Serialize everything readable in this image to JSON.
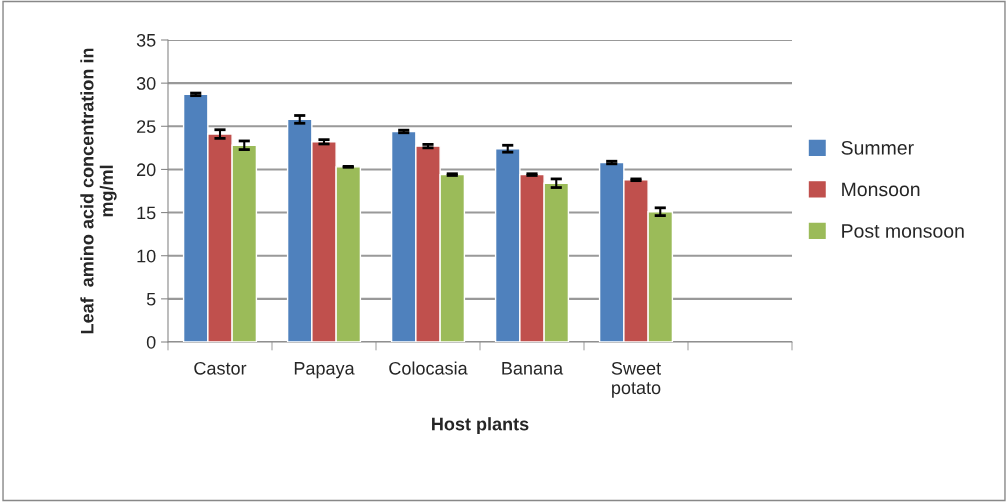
{
  "chart_data": {
    "type": "bar",
    "xlabel": "Host plants",
    "ylabel": "Leaf  amino acid concentration in\nmg/ml",
    "categories": [
      "Castor",
      "Papaya",
      "Colocasia",
      "Banana",
      "Sweet\npotato",
      null
    ],
    "series": [
      {
        "name": "Summer",
        "color": "#4f81bd",
        "values": [
          28.7,
          25.8,
          24.4,
          22.4,
          20.8,
          null
        ],
        "errors": [
          0.15,
          0.45,
          0.15,
          0.4,
          0.15,
          null
        ]
      },
      {
        "name": "Monsoon",
        "color": "#c0504d",
        "values": [
          24.1,
          23.2,
          22.7,
          19.4,
          18.8,
          null
        ],
        "errors": [
          0.5,
          0.25,
          0.2,
          0.1,
          0.1,
          null
        ]
      },
      {
        "name": "Post monsoon",
        "color": "#9bbb59",
        "values": [
          22.8,
          20.3,
          19.4,
          18.4,
          15.1,
          null
        ],
        "errors": [
          0.5,
          0.05,
          0.1,
          0.5,
          0.45,
          null
        ]
      }
    ],
    "ylim": [
      0,
      35
    ],
    "yticks": [
      0,
      5,
      10,
      15,
      20,
      25,
      30,
      35
    ],
    "grid": "y",
    "legend": "right"
  }
}
